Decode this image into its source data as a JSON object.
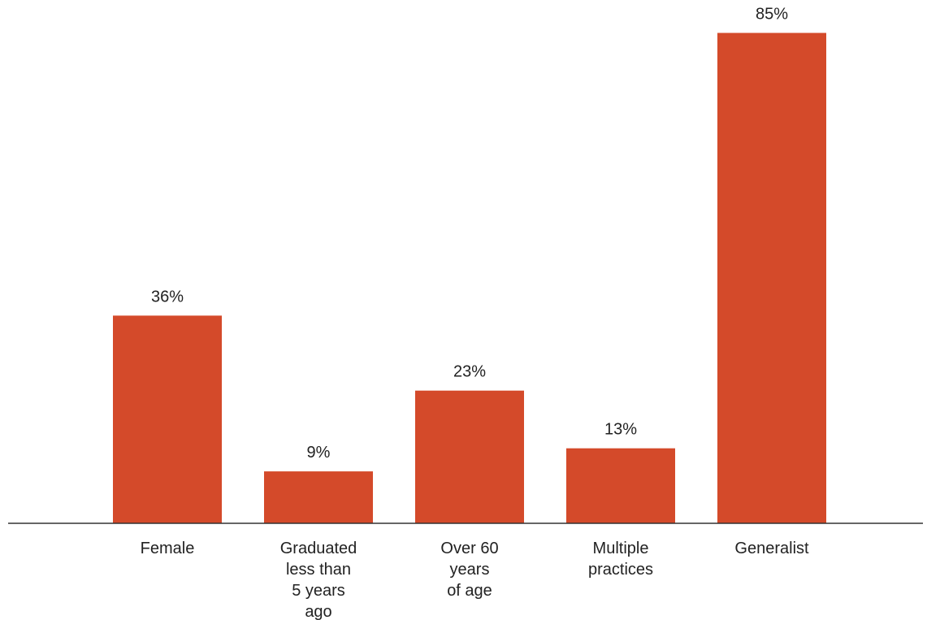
{
  "chart_data": {
    "type": "bar",
    "categories": [
      [
        "Female"
      ],
      [
        "Graduated",
        "less than",
        "5 years",
        "ago"
      ],
      [
        "Over 60",
        "years",
        "of age"
      ],
      [
        "Multiple",
        "practices"
      ],
      [
        "Generalist"
      ]
    ],
    "values": [
      36,
      9,
      23,
      13,
      85
    ],
    "data_labels": [
      "36%",
      "9%",
      "23%",
      "13%",
      "85%"
    ],
    "title": "",
    "xlabel": "",
    "ylabel": "",
    "ylim": [
      0,
      100
    ],
    "grid": false,
    "legend": "none",
    "bar_color": "#d44a2a",
    "axis_color": "#333333"
  }
}
